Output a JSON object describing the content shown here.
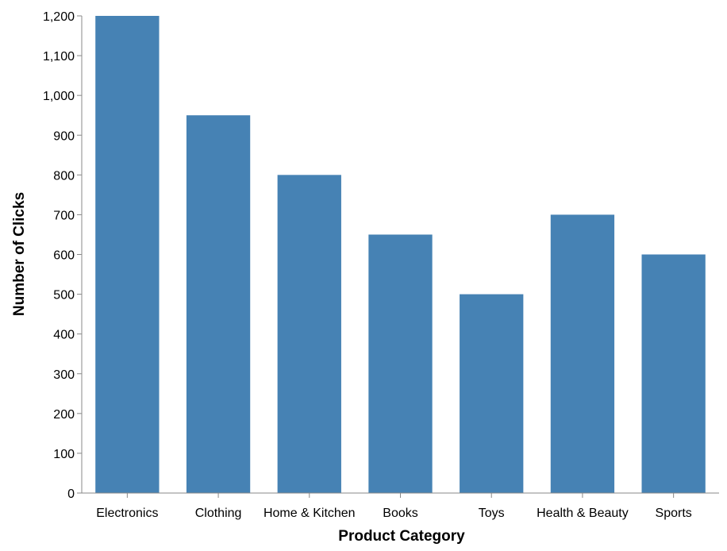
{
  "chart_data": {
    "type": "bar",
    "categories": [
      "Electronics",
      "Clothing",
      "Home & Kitchen",
      "Books",
      "Toys",
      "Health & Beauty",
      "Sports"
    ],
    "values": [
      1200,
      950,
      800,
      650,
      500,
      700,
      600
    ],
    "xlabel": "Product Category",
    "ylabel": "Number of Clicks",
    "ylim": [
      0,
      1200
    ],
    "yticks": [
      "0",
      "100",
      "200",
      "300",
      "400",
      "500",
      "600",
      "700",
      "800",
      "900",
      "1,000",
      "1,100",
      "1,200"
    ],
    "grid": false,
    "bar_color": "#4682b4",
    "axis_color": "#888888"
  }
}
